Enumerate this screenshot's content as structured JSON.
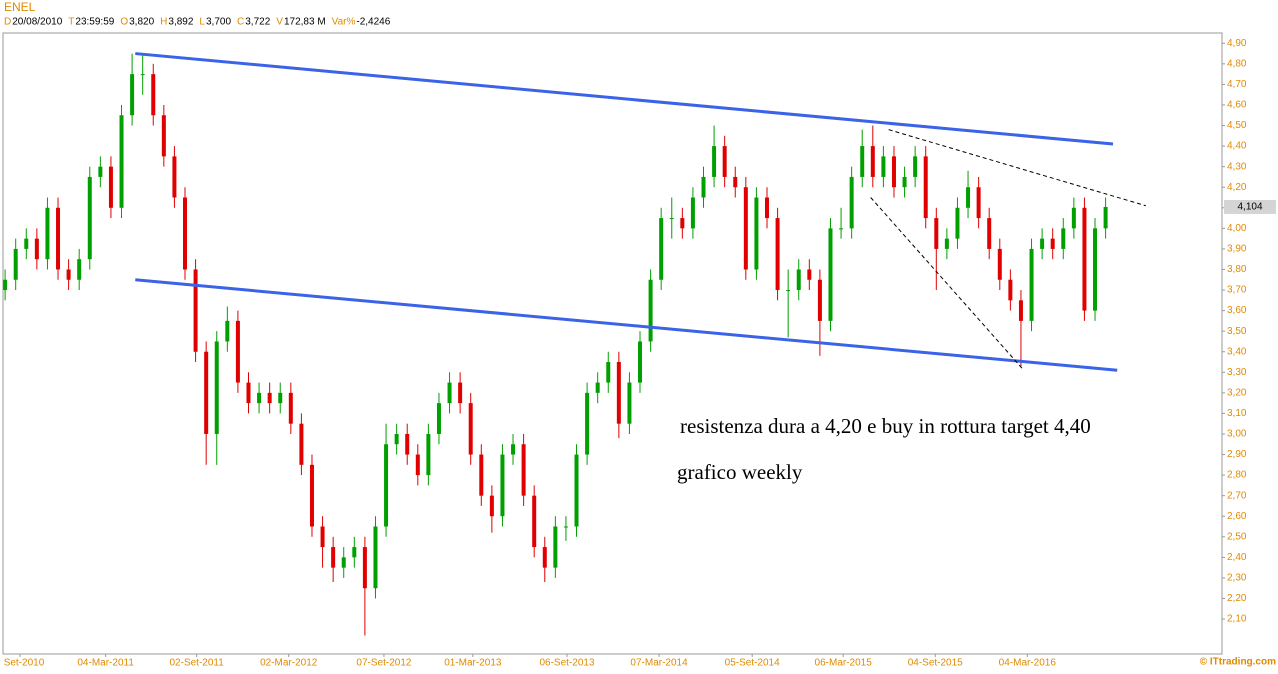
{
  "chart_data": {
    "type": "candlestick",
    "title": "ENEL",
    "header": [
      {
        "key": "D",
        "value": "20/08/2010"
      },
      {
        "key": "T",
        "value": "23:59:59"
      },
      {
        "key": "O",
        "value": "3,820"
      },
      {
        "key": "H",
        "value": "3,892"
      },
      {
        "key": "L",
        "value": "3,700"
      },
      {
        "key": "C",
        "value": "3,722"
      },
      {
        "key": "V",
        "value": "172,83 M"
      },
      {
        "key": "Var%",
        "value": "-2,4246"
      }
    ],
    "up_color": "#00a000",
    "down_color": "#e00000",
    "open": [
      3.7,
      3.75,
      3.9,
      3.95,
      3.85,
      4.1,
      3.8,
      3.75,
      3.85,
      4.25,
      4.3,
      4.1,
      4.55,
      4.75,
      4.75,
      4.55,
      4.35,
      4.15,
      3.8,
      3.4,
      3.0,
      3.45,
      3.55,
      3.25,
      3.15,
      3.2,
      3.15,
      3.2,
      3.05,
      2.85,
      2.55,
      2.45,
      2.35,
      2.4,
      2.45,
      2.25,
      2.55,
      2.95,
      3.0,
      2.9,
      2.8,
      3.0,
      3.15,
      3.25,
      3.15,
      2.9,
      2.7,
      2.6,
      2.9,
      2.95,
      2.7,
      2.45,
      2.35,
      2.55,
      2.55,
      2.9,
      3.2,
      3.25,
      3.35,
      3.05,
      3.25,
      3.45,
      3.75,
      4.05,
      4.05,
      4.0,
      4.15,
      4.25,
      4.4,
      4.25,
      4.2,
      3.8,
      4.15,
      4.05,
      3.7,
      3.7,
      3.8,
      3.75,
      3.55,
      4.0,
      4.0,
      4.25,
      4.4,
      4.25,
      4.35,
      4.2,
      4.25,
      4.35,
      4.05,
      3.9,
      3.95,
      4.1,
      4.2,
      4.05,
      3.9,
      3.75,
      3.65,
      3.55,
      3.9,
      3.95,
      3.9,
      4.0,
      4.1,
      3.6,
      4.0
    ],
    "high": [
      3.8,
      3.95,
      4.0,
      4.0,
      4.15,
      4.15,
      3.85,
      3.9,
      4.3,
      4.35,
      4.35,
      4.6,
      4.85,
      4.85,
      4.8,
      4.6,
      4.4,
      4.2,
      3.85,
      3.45,
      3.5,
      3.62,
      3.6,
      3.3,
      3.25,
      3.25,
      3.25,
      3.25,
      3.1,
      2.9,
      2.6,
      2.5,
      2.45,
      2.5,
      2.5,
      2.6,
      3.05,
      3.05,
      3.05,
      2.95,
      3.05,
      3.2,
      3.3,
      3.3,
      3.2,
      2.95,
      2.75,
      2.95,
      3.0,
      3.0,
      2.75,
      2.5,
      2.6,
      2.6,
      2.95,
      3.25,
      3.3,
      3.4,
      3.4,
      3.3,
      3.5,
      3.8,
      4.1,
      4.15,
      4.1,
      4.2,
      4.3,
      4.5,
      4.45,
      4.3,
      4.25,
      4.2,
      4.2,
      4.1,
      3.8,
      3.85,
      3.85,
      3.8,
      4.05,
      4.1,
      4.3,
      4.48,
      4.5,
      4.4,
      4.4,
      4.3,
      4.4,
      4.4,
      4.1,
      4.0,
      4.15,
      4.28,
      4.25,
      4.1,
      3.95,
      3.8,
      3.7,
      3.95,
      4.0,
      4.0,
      4.05,
      4.15,
      4.15,
      4.05,
      4.15
    ],
    "low": [
      3.65,
      3.7,
      3.85,
      3.8,
      3.8,
      3.75,
      3.7,
      3.7,
      3.8,
      4.2,
      4.05,
      4.05,
      4.5,
      4.65,
      4.5,
      4.3,
      4.1,
      3.75,
      3.35,
      2.85,
      2.85,
      3.4,
      3.2,
      3.1,
      3.1,
      3.1,
      3.1,
      3.0,
      2.8,
      2.5,
      2.35,
      2.28,
      2.3,
      2.35,
      2.02,
      2.2,
      2.5,
      2.9,
      2.85,
      2.75,
      2.75,
      2.95,
      3.1,
      3.1,
      2.85,
      2.65,
      2.52,
      2.55,
      2.85,
      2.65,
      2.4,
      2.28,
      2.3,
      2.48,
      2.5,
      2.85,
      3.15,
      3.2,
      2.98,
      3.0,
      3.2,
      3.4,
      3.7,
      3.95,
      3.95,
      3.95,
      4.1,
      4.2,
      4.2,
      4.15,
      3.75,
      3.75,
      4.0,
      3.65,
      3.47,
      3.65,
      3.7,
      3.38,
      3.5,
      3.95,
      3.95,
      4.2,
      4.2,
      4.2,
      4.15,
      4.15,
      4.2,
      4.0,
      3.7,
      3.85,
      3.9,
      4.05,
      4.0,
      3.85,
      3.7,
      3.6,
      3.33,
      3.5,
      3.85,
      3.85,
      3.85,
      3.95,
      3.55,
      3.55,
      3.95
    ],
    "close": [
      3.75,
      3.9,
      3.95,
      3.85,
      4.1,
      3.8,
      3.75,
      3.85,
      4.25,
      4.3,
      4.1,
      4.55,
      4.75,
      4.75,
      4.55,
      4.35,
      4.15,
      3.8,
      3.4,
      3.0,
      3.45,
      3.55,
      3.25,
      3.15,
      3.2,
      3.15,
      3.2,
      3.05,
      2.85,
      2.55,
      2.45,
      2.35,
      2.4,
      2.45,
      2.25,
      2.55,
      2.95,
      3.0,
      2.9,
      2.8,
      3.0,
      3.15,
      3.25,
      3.15,
      2.9,
      2.7,
      2.6,
      2.9,
      2.95,
      2.7,
      2.45,
      2.35,
      2.55,
      2.55,
      2.9,
      3.2,
      3.25,
      3.35,
      3.05,
      3.25,
      3.45,
      3.75,
      4.05,
      4.05,
      4.0,
      4.15,
      4.25,
      4.4,
      4.25,
      4.2,
      3.8,
      4.15,
      4.05,
      3.7,
      3.7,
      3.8,
      3.75,
      3.55,
      4.0,
      4.0,
      4.25,
      4.4,
      4.25,
      4.35,
      4.2,
      4.25,
      4.35,
      4.05,
      3.9,
      3.95,
      4.1,
      4.2,
      4.05,
      3.9,
      3.75,
      3.65,
      3.55,
      3.9,
      3.95,
      3.9,
      4.0,
      4.1,
      3.6,
      4.0,
      4.104
    ],
    "last_price": {
      "value": 4.104,
      "label": "4,104"
    },
    "xlim": [
      -0.2,
      115
    ],
    "ylim": [
      1.93,
      4.95
    ],
    "xticks": [
      {
        "value": 1.4,
        "label": "Set-2010"
      },
      {
        "value": 9.5,
        "label": "04-Mar-2011"
      },
      {
        "value": 18.1,
        "label": "02-Set-2011"
      },
      {
        "value": 26.8,
        "label": "02-Mar-2012"
      },
      {
        "value": 35.8,
        "label": "07-Set-2012"
      },
      {
        "value": 44.2,
        "label": "01-Mar-2013"
      },
      {
        "value": 53.1,
        "label": "06-Set-2013"
      },
      {
        "value": 61.8,
        "label": "07-Mar-2014"
      },
      {
        "value": 70.6,
        "label": "05-Set-2014"
      },
      {
        "value": 79.2,
        "label": "06-Mar-2015"
      },
      {
        "value": 87.9,
        "label": "04-Set-2015"
      },
      {
        "value": 96.6,
        "label": "04-Mar-2016"
      }
    ],
    "yticks": [
      {
        "value": 2.1,
        "label": "2,10"
      },
      {
        "value": 2.2,
        "label": "2,20"
      },
      {
        "value": 2.3,
        "label": "2,30"
      },
      {
        "value": 2.4,
        "label": "2,40"
      },
      {
        "value": 2.5,
        "label": "2,50"
      },
      {
        "value": 2.6,
        "label": "2,60"
      },
      {
        "value": 2.7,
        "label": "2,70"
      },
      {
        "value": 2.8,
        "label": "2,80"
      },
      {
        "value": 2.9,
        "label": "2,90"
      },
      {
        "value": 3.0,
        "label": "3,00"
      },
      {
        "value": 3.1,
        "label": "3,10"
      },
      {
        "value": 3.2,
        "label": "3,20"
      },
      {
        "value": 3.3,
        "label": "3,30"
      },
      {
        "value": 3.4,
        "label": "3,40"
      },
      {
        "value": 3.5,
        "label": "3,50"
      },
      {
        "value": 3.6,
        "label": "3,60"
      },
      {
        "value": 3.7,
        "label": "3,70"
      },
      {
        "value": 3.8,
        "label": "3,80"
      },
      {
        "value": 3.9,
        "label": "3,90"
      },
      {
        "value": 4.0,
        "label": "4,00"
      },
      {
        "value": 4.1,
        "label": "4,10"
      },
      {
        "value": 4.2,
        "label": "4,20"
      },
      {
        "value": 4.3,
        "label": "4,30"
      },
      {
        "value": 4.4,
        "label": "4,40"
      },
      {
        "value": 4.5,
        "label": "4,50"
      },
      {
        "value": 4.6,
        "label": "4,60"
      },
      {
        "value": 4.7,
        "label": "4,70"
      },
      {
        "value": 4.8,
        "label": "4,80"
      },
      {
        "value": 4.9,
        "label": "4,90"
      }
    ],
    "trendlines": [
      {
        "x": [
          12.3,
          104.7
        ],
        "y": [
          4.85,
          4.41
        ],
        "color": "#3a63e8",
        "dashed": false
      },
      {
        "x": [
          12.3,
          105.1
        ],
        "y": [
          3.75,
          3.31
        ],
        "color": "#3a63e8",
        "dashed": false
      },
      {
        "x": [
          83.5,
          107.8
        ],
        "y": [
          4.48,
          4.11
        ],
        "color": "#000000",
        "dashed": true
      },
      {
        "x": [
          81.8,
          96.1
        ],
        "y": [
          4.15,
          3.32
        ],
        "color": "#000000",
        "dashed": true
      }
    ],
    "annotations": [
      "resistenza dura a 4,20 e buy in rottura target 4,40",
      "grafico weekly"
    ],
    "footer": "© ITtrading.com"
  }
}
